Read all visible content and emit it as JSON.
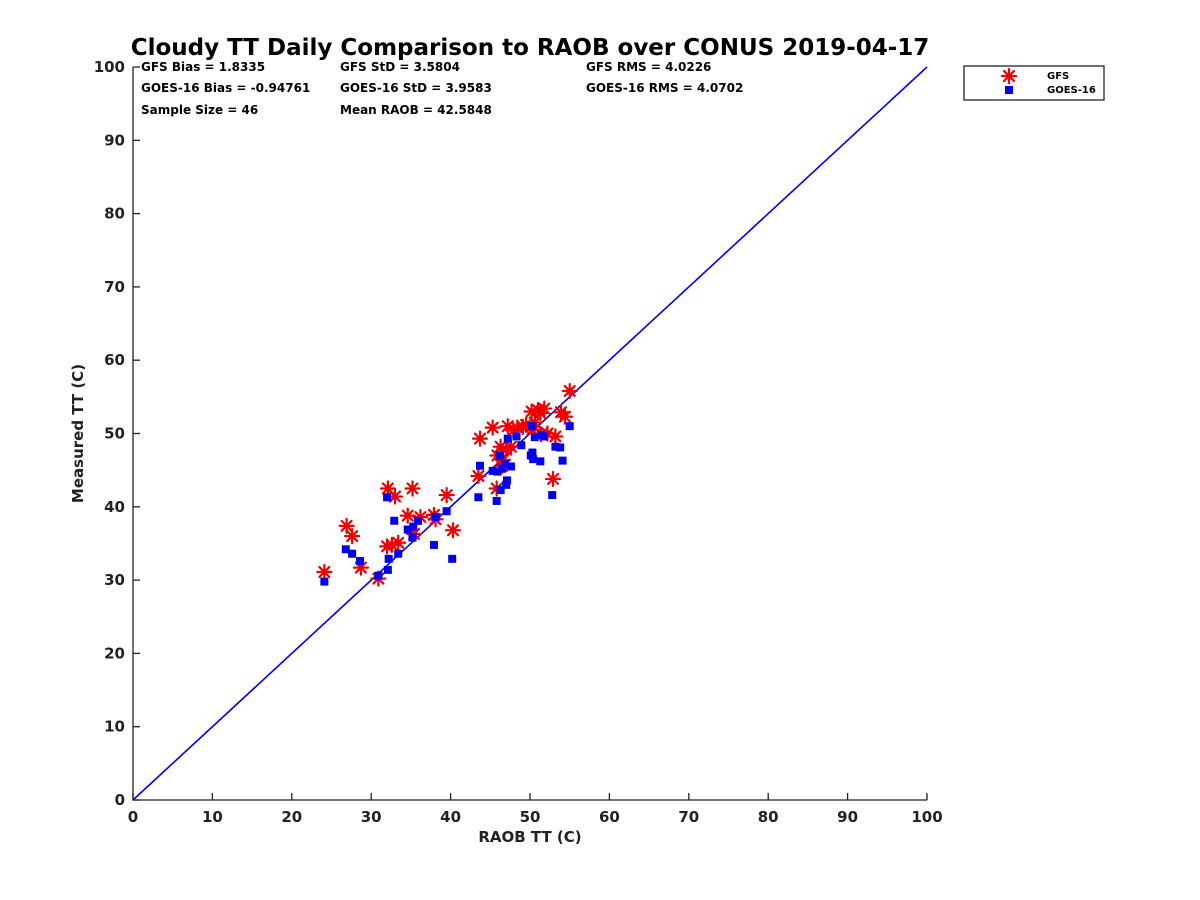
{
  "chart_data": {
    "type": "scatter",
    "title": "Cloudy TT Daily Comparison to RAOB over CONUS 2019-04-17",
    "xlabel": "RAOB TT (C)",
    "ylabel": "Measured TT (C)",
    "xlim": [
      0,
      100
    ],
    "ylim": [
      0,
      100
    ],
    "xticks": [
      "0",
      "10",
      "20",
      "30",
      "40",
      "50",
      "60",
      "70",
      "80",
      "90",
      "100"
    ],
    "yticks": [
      "0",
      "10",
      "20",
      "30",
      "40",
      "50",
      "60",
      "70",
      "80",
      "90",
      "100"
    ],
    "grid": false,
    "legend_position": "top-right",
    "reference_line": {
      "x": [
        0,
        100
      ],
      "y": [
        0,
        100
      ],
      "color": "#0000ee"
    },
    "stats": [
      [
        "GFS Bias = 1.8335",
        "GFS StD = 3.5804",
        "GFS RMS = 4.0226"
      ],
      [
        "GOES-16 Bias = -0.94761",
        "GOES-16 StD = 3.9583",
        "GOES-16 RMS = 4.0702"
      ],
      [
        "Sample Size = 46",
        "Mean RAOB = 42.5848",
        ""
      ]
    ],
    "series": [
      {
        "name": "GFS",
        "marker": "asterisk",
        "color": "#ee0000",
        "points": [
          [
            24.1,
            31.1
          ],
          [
            26.9,
            37.4
          ],
          [
            27.6,
            36.0
          ],
          [
            28.7,
            31.7
          ],
          [
            30.9,
            30.2
          ],
          [
            32.1,
            42.5
          ],
          [
            32.0,
            34.6
          ],
          [
            32.6,
            34.8
          ],
          [
            33.0,
            41.4
          ],
          [
            33.4,
            35.1
          ],
          [
            34.6,
            38.8
          ],
          [
            35.2,
            42.5
          ],
          [
            35.4,
            36.3
          ],
          [
            36.2,
            38.6
          ],
          [
            37.9,
            38.9
          ],
          [
            38.1,
            38.3
          ],
          [
            39.5,
            41.6
          ],
          [
            40.3,
            36.8
          ],
          [
            43.5,
            44.2
          ],
          [
            43.7,
            49.3
          ],
          [
            45.3,
            50.8
          ],
          [
            45.8,
            42.5
          ],
          [
            45.9,
            47.0
          ],
          [
            46.3,
            48.2
          ],
          [
            46.5,
            45.6
          ],
          [
            47.0,
            47.8
          ],
          [
            47.2,
            51.0
          ],
          [
            47.6,
            48.2
          ],
          [
            47.9,
            50.4
          ],
          [
            48.4,
            50.8
          ],
          [
            49.1,
            50.9
          ],
          [
            50.2,
            53.0
          ],
          [
            50.6,
            51.5
          ],
          [
            51.0,
            53.2
          ],
          [
            51.3,
            52.8
          ],
          [
            51.8,
            53.4
          ],
          [
            51.4,
            49.9
          ],
          [
            52.9,
            43.8
          ],
          [
            53.2,
            49.6
          ],
          [
            53.9,
            52.9
          ],
          [
            54.4,
            52.3
          ],
          [
            55.0,
            55.8
          ],
          [
            49.5,
            51.2
          ],
          [
            46.6,
            46.4
          ],
          [
            50.3,
            50.5
          ],
          [
            52.2,
            50.0
          ]
        ]
      },
      {
        "name": "GOES-16",
        "marker": "square",
        "color": "#0000ee",
        "points": [
          [
            24.1,
            29.8
          ],
          [
            26.8,
            34.2
          ],
          [
            27.6,
            33.6
          ],
          [
            28.6,
            32.6
          ],
          [
            30.9,
            30.6
          ],
          [
            32.0,
            41.3
          ],
          [
            32.1,
            31.4
          ],
          [
            32.2,
            32.9
          ],
          [
            32.9,
            38.1
          ],
          [
            33.4,
            33.6
          ],
          [
            34.6,
            36.9
          ],
          [
            35.2,
            35.8
          ],
          [
            35.3,
            37.3
          ],
          [
            35.9,
            38.1
          ],
          [
            37.9,
            34.8
          ],
          [
            38.1,
            38.6
          ],
          [
            39.5,
            39.4
          ],
          [
            40.2,
            32.9
          ],
          [
            43.5,
            41.3
          ],
          [
            43.7,
            45.6
          ],
          [
            45.3,
            44.9
          ],
          [
            45.8,
            40.8
          ],
          [
            45.9,
            44.8
          ],
          [
            46.3,
            42.3
          ],
          [
            46.5,
            45.2
          ],
          [
            47.0,
            43.0
          ],
          [
            47.2,
            49.3
          ],
          [
            47.6,
            45.5
          ],
          [
            47.1,
            43.6
          ],
          [
            48.3,
            49.6
          ],
          [
            48.9,
            48.4
          ],
          [
            50.2,
            51.0
          ],
          [
            50.3,
            47.4
          ],
          [
            50.6,
            49.5
          ],
          [
            50.4,
            46.5
          ],
          [
            51.3,
            46.2
          ],
          [
            51.4,
            49.8
          ],
          [
            52.8,
            41.6
          ],
          [
            53.2,
            48.2
          ],
          [
            53.8,
            48.1
          ],
          [
            54.1,
            46.3
          ],
          [
            55.0,
            51.0
          ],
          [
            46.9,
            45.8
          ],
          [
            50.1,
            47.0
          ],
          [
            51.7,
            49.6
          ],
          [
            46.2,
            47.0
          ]
        ]
      }
    ]
  }
}
